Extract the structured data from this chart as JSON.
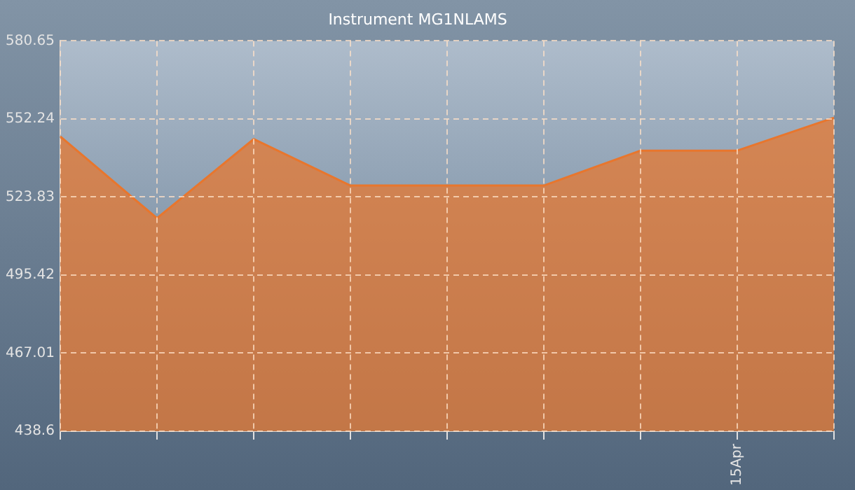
{
  "chart_data": {
    "type": "area",
    "title": "Instrument MG1NLAMS",
    "categories": [
      null,
      null,
      null,
      null,
      null,
      null,
      null,
      "15Apr",
      null
    ],
    "series": [
      {
        "color": "#e8762d",
        "values": [
          545.9,
          516.1,
          544.9,
          528.0,
          528.0,
          528.0,
          540.7,
          540.7,
          552.7
        ]
      }
    ],
    "ylim": [
      438.6,
      580.65
    ],
    "yticks": [
      438.6,
      467.01,
      495.42,
      523.83,
      552.24,
      580.65
    ],
    "grid": true,
    "legend": false,
    "line_style": "dashed"
  }
}
